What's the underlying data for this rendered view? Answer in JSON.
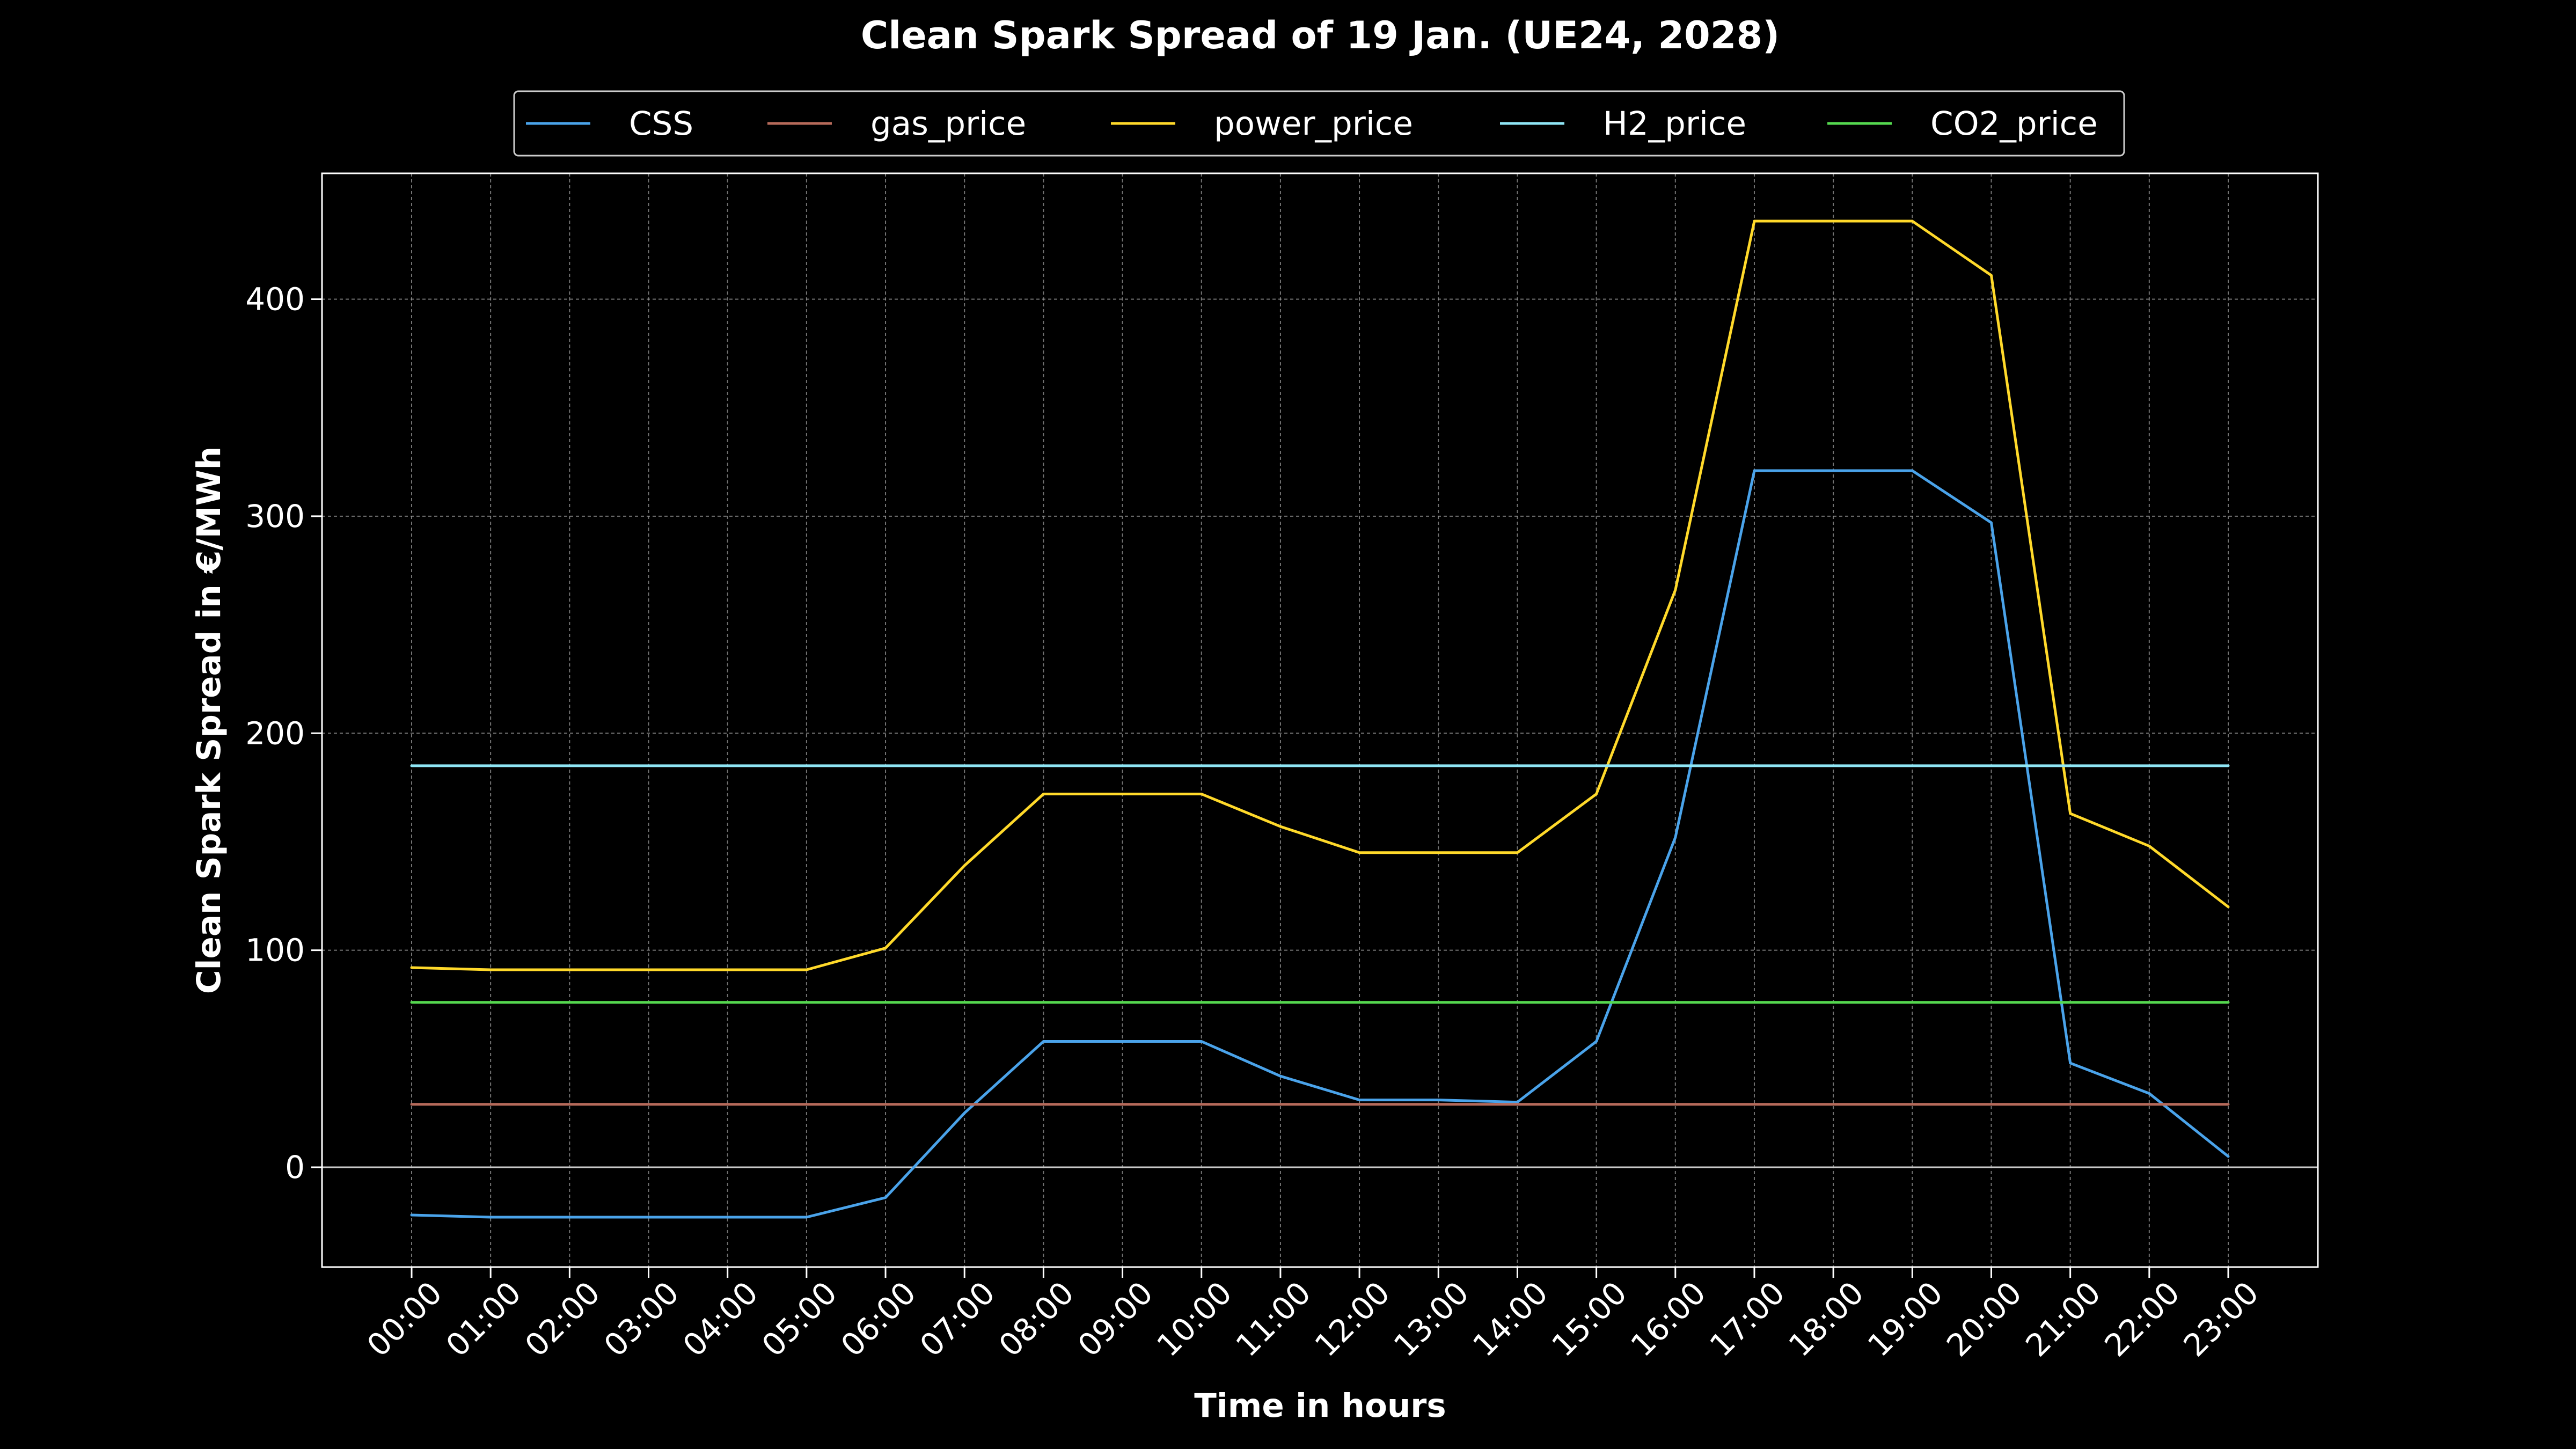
{
  "chart_data": {
    "type": "line",
    "title": "Clean Spark Spread of 19 Jan. (UE24, 2028)",
    "xlabel": "Time in hours",
    "ylabel": "Clean Spark Spread in €/MWh",
    "categories": [
      "00:00",
      "01:00",
      "02:00",
      "03:00",
      "04:00",
      "05:00",
      "06:00",
      "07:00",
      "08:00",
      "09:00",
      "10:00",
      "11:00",
      "12:00",
      "13:00",
      "14:00",
      "15:00",
      "16:00",
      "17:00",
      "18:00",
      "19:00",
      "20:00",
      "21:00",
      "22:00",
      "23:00"
    ],
    "ylim": [
      -46,
      458
    ],
    "yticks": [
      0,
      100,
      200,
      300,
      400
    ],
    "grid": true,
    "legend_position": "top-center",
    "background": "#000000",
    "zero_line_color": "#c8c8c8",
    "series": [
      {
        "name": "CSS",
        "color": "#4aa3ea",
        "values": [
          -22,
          -23,
          -23,
          -23,
          -23,
          -23,
          -14,
          25,
          58,
          58,
          58,
          42,
          31,
          31,
          30,
          58,
          152,
          321,
          321,
          321,
          297,
          48,
          34,
          5
        ]
      },
      {
        "name": "gas_price",
        "color": "#b66a5a",
        "values": [
          29,
          29,
          29,
          29,
          29,
          29,
          29,
          29,
          29,
          29,
          29,
          29,
          29,
          29,
          29,
          29,
          29,
          29,
          29,
          29,
          29,
          29,
          29,
          29
        ]
      },
      {
        "name": "power_price",
        "color": "#ffd92a",
        "values": [
          92,
          91,
          91,
          91,
          91,
          91,
          101,
          139,
          172,
          172,
          172,
          157,
          145,
          145,
          145,
          172,
          266,
          436,
          436,
          436,
          411,
          163,
          148,
          120
        ]
      },
      {
        "name": "H2_price",
        "color": "#8fe6f5",
        "values": [
          185,
          185,
          185,
          185,
          185,
          185,
          185,
          185,
          185,
          185,
          185,
          185,
          185,
          185,
          185,
          185,
          185,
          185,
          185,
          185,
          185,
          185,
          185,
          185
        ]
      },
      {
        "name": "CO2_price",
        "color": "#55d84f",
        "values": [
          76,
          76,
          76,
          76,
          76,
          76,
          76,
          76,
          76,
          76,
          76,
          76,
          76,
          76,
          76,
          76,
          76,
          76,
          76,
          76,
          76,
          76,
          76,
          76
        ]
      }
    ]
  }
}
